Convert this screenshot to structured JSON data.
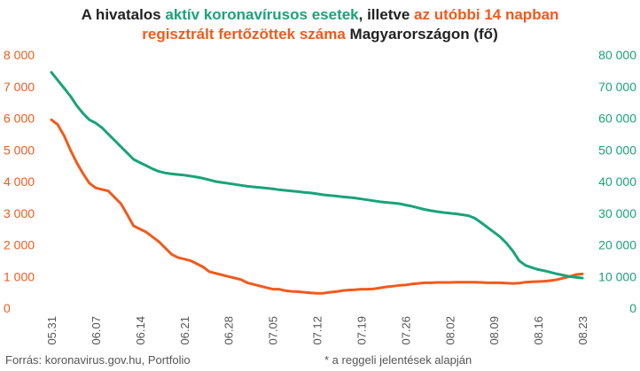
{
  "title": {
    "part1": "A hivatalos ",
    "part2": "aktív koronavírusos esetek",
    "part3": ", illetve ",
    "part4": "az utóbbi 14 napban",
    "part5": "regisztrált fertőzöttek száma",
    "part6": " Magyarországon (fő)"
  },
  "footer": {
    "source": "Forrás: koronavirus.gov.hu, Portfolio",
    "note": "* a reggeli jelentések alapján"
  },
  "colors": {
    "orange": "#f15a1b",
    "green": "#19a37a",
    "axis_text": "#555555"
  },
  "chart_data": {
    "type": "line",
    "x_tick_labels": [
      "05.31",
      "06.07",
      "06.14",
      "06.21",
      "06.28",
      "07.05",
      "07.12",
      "07.19",
      "07.26",
      "08.02",
      "08.09",
      "08.16",
      "08.23"
    ],
    "y_left_ticks": [
      "0",
      "1 000",
      "2 000",
      "3 000",
      "4 000",
      "5 000",
      "6 000",
      "7 000",
      "8 000"
    ],
    "y_right_ticks": [
      "0",
      "10 000",
      "20 000",
      "30 000",
      "40 000",
      "50 000",
      "60 000",
      "70 000",
      "80 000"
    ],
    "ylim_left": [
      0,
      8000
    ],
    "ylim_right": [
      0,
      80000
    ],
    "x_start": "2020-05-31",
    "series": [
      {
        "axis": "left",
        "color": "#f15a1b",
        "x": [
          "05.31",
          "06.01",
          "06.02",
          "06.03",
          "06.04",
          "06.05",
          "06.06",
          "06.07",
          "06.08",
          "06.09",
          "06.10",
          "06.11",
          "06.12",
          "06.13",
          "06.14",
          "06.15",
          "06.16",
          "06.17",
          "06.18",
          "06.19",
          "06.20",
          "06.21",
          "06.22",
          "06.23",
          "06.24",
          "06.25",
          "06.26",
          "06.27",
          "06.28",
          "06.29",
          "06.30",
          "07.01",
          "07.02",
          "07.03",
          "07.04",
          "07.05",
          "07.06",
          "07.07",
          "07.08",
          "07.09",
          "07.10",
          "07.11",
          "07.12",
          "07.13",
          "07.14",
          "07.15",
          "07.16",
          "07.17",
          "07.18",
          "07.19",
          "07.20",
          "07.21",
          "07.22",
          "07.23",
          "07.24",
          "07.25",
          "07.26",
          "07.27",
          "07.28",
          "07.29",
          "07.30",
          "07.31",
          "08.01",
          "08.02",
          "08.03",
          "08.04",
          "08.05",
          "08.06",
          "08.07",
          "08.08",
          "08.09",
          "08.10",
          "08.11",
          "08.12",
          "08.13",
          "08.14",
          "08.15",
          "08.16",
          "08.17",
          "08.18",
          "08.19",
          "08.20",
          "08.21",
          "08.22",
          "08.23"
        ],
        "values": [
          5950,
          5800,
          5450,
          5000,
          4600,
          4250,
          3950,
          3800,
          3750,
          3700,
          3500,
          3300,
          2950,
          2600,
          2500,
          2400,
          2250,
          2100,
          1900,
          1700,
          1600,
          1550,
          1500,
          1400,
          1300,
          1150,
          1100,
          1050,
          1000,
          950,
          900,
          800,
          750,
          700,
          650,
          600,
          600,
          550,
          530,
          520,
          500,
          480,
          470,
          470,
          500,
          520,
          550,
          570,
          580,
          600,
          600,
          610,
          640,
          670,
          690,
          720,
          730,
          760,
          780,
          800,
          800,
          810,
          810,
          810,
          820,
          820,
          820,
          820,
          810,
          800,
          800,
          800,
          790,
          780,
          790,
          820,
          830,
          840,
          850,
          870,
          900,
          950,
          1000,
          1060,
          1080
        ],
        "name": ""
      },
      {
        "axis": "right",
        "color": "#19a37a",
        "x": [
          "05.31",
          "06.01",
          "06.02",
          "06.03",
          "06.04",
          "06.05",
          "06.06",
          "06.07",
          "06.08",
          "06.09",
          "06.10",
          "06.11",
          "06.12",
          "06.13",
          "06.14",
          "06.15",
          "06.16",
          "06.17",
          "06.18",
          "06.19",
          "06.20",
          "06.21",
          "06.22",
          "06.23",
          "06.24",
          "06.25",
          "06.26",
          "06.27",
          "06.28",
          "06.29",
          "06.30",
          "07.01",
          "07.02",
          "07.03",
          "07.04",
          "07.05",
          "07.06",
          "07.07",
          "07.08",
          "07.09",
          "07.10",
          "07.11",
          "07.12",
          "07.13",
          "07.14",
          "07.15",
          "07.16",
          "07.17",
          "07.18",
          "07.19",
          "07.20",
          "07.21",
          "07.22",
          "07.23",
          "07.24",
          "07.25",
          "07.26",
          "07.27",
          "07.28",
          "07.29",
          "07.30",
          "07.31",
          "08.01",
          "08.02",
          "08.03",
          "08.04",
          "08.05",
          "08.06",
          "08.07",
          "08.08",
          "08.09",
          "08.10",
          "08.11",
          "08.12",
          "08.13",
          "08.14",
          "08.15",
          "08.16",
          "08.17",
          "08.18",
          "08.19",
          "08.20",
          "08.21",
          "08.22",
          "08.23"
        ],
        "values": [
          74500,
          72000,
          69500,
          67000,
          64000,
          61500,
          59500,
          58500,
          57000,
          55000,
          53000,
          51000,
          49000,
          47000,
          46000,
          45000,
          44000,
          43200,
          42700,
          42400,
          42200,
          42000,
          41700,
          41400,
          41000,
          40500,
          40000,
          39700,
          39400,
          39100,
          38800,
          38500,
          38300,
          38100,
          37900,
          37700,
          37400,
          37200,
          37000,
          36800,
          36600,
          36400,
          36100,
          35800,
          35600,
          35400,
          35200,
          35000,
          34800,
          34500,
          34200,
          33900,
          33600,
          33400,
          33200,
          33000,
          32600,
          32200,
          31700,
          31200,
          30800,
          30500,
          30200,
          30000,
          29800,
          29500,
          29200,
          28400,
          27000,
          25500,
          24000,
          22500,
          20500,
          18000,
          15000,
          13500,
          12800,
          12200,
          11800,
          11300,
          10800,
          10400,
          10000,
          9700,
          9500
        ],
        "name": ""
      }
    ],
    "grid": false,
    "xlabel": "",
    "ylabel_left": "",
    "ylabel_right": ""
  }
}
